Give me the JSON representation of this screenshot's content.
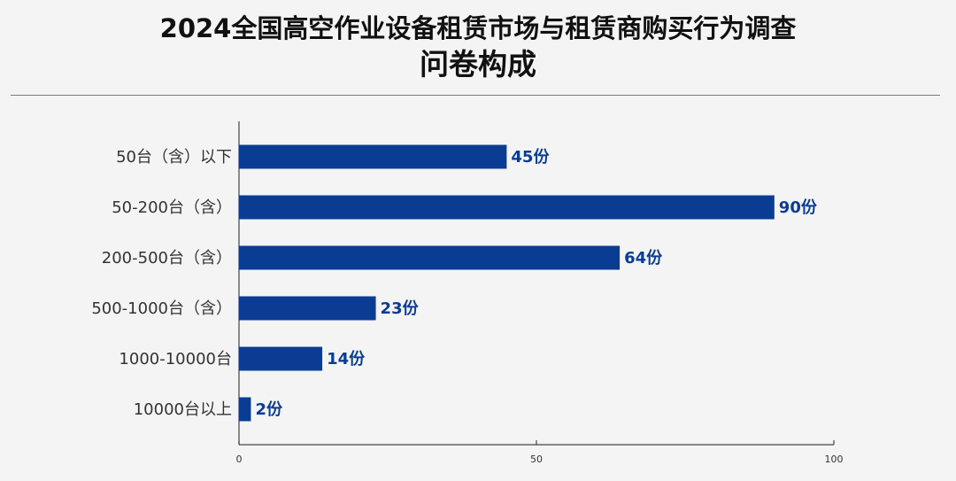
{
  "title": {
    "line1": "2024全国高空作业设备租赁市场与租赁商购买行为调查",
    "line2": "问卷构成"
  },
  "chart_data": {
    "type": "bar",
    "orientation": "horizontal",
    "categories": [
      "50台（含）以下",
      "50-200台（含）",
      "200-500台（含）",
      "500-1000台（含）",
      "1000-10000台",
      "10000台以上"
    ],
    "values": [
      45,
      90,
      64,
      23,
      14,
      2
    ],
    "value_labels": [
      "45份",
      "90份",
      "64份",
      "23份",
      "14份",
      "2份"
    ],
    "xlim": [
      0,
      100
    ],
    "xticks": [
      0,
      50,
      100
    ],
    "xtick_labels": [
      "0",
      "50",
      "100"
    ],
    "bar_color": "#0b3c94",
    "label_color": "#0b3c94",
    "grid": false
  }
}
